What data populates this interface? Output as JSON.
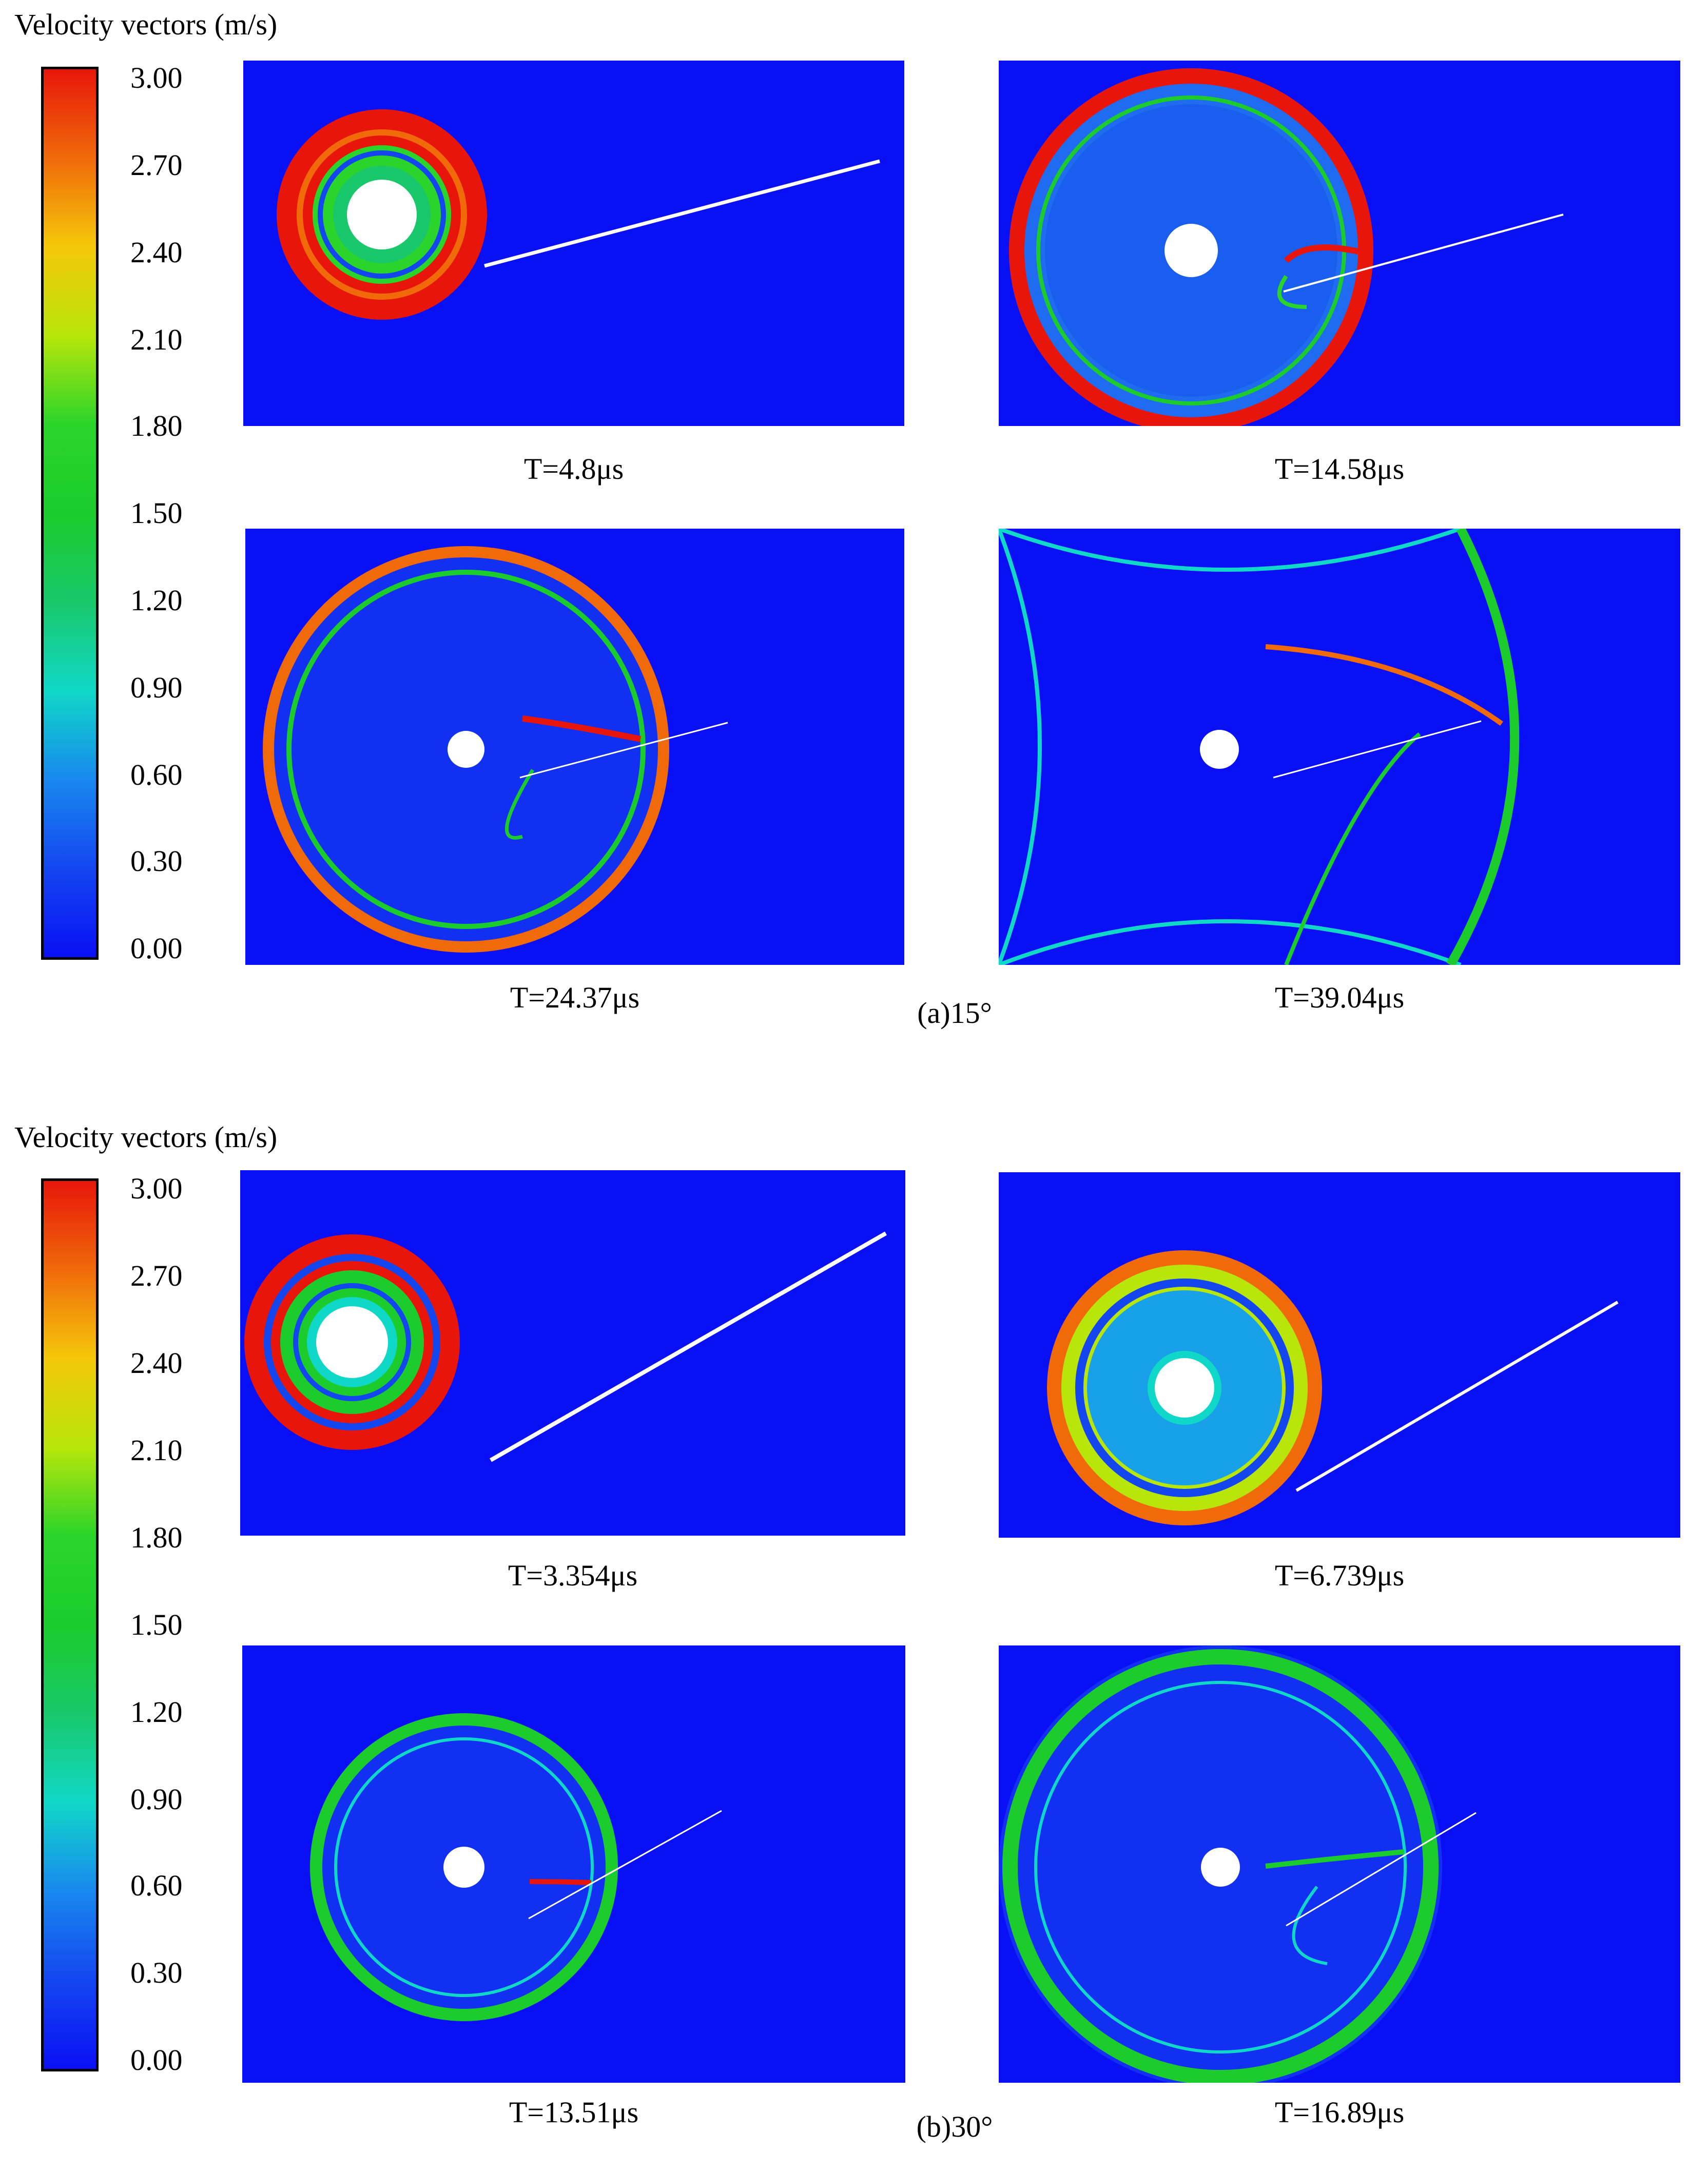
{
  "figures": [
    {
      "legend_title": "Velocity vectors (m/s)",
      "ticks": [
        "3.00",
        "2.70",
        "2.40",
        "2.10",
        "1.80",
        "1.50",
        "1.20",
        "0.90",
        "0.60",
        "0.30",
        "0.00"
      ],
      "panel_labels": [
        "T=4.8μs",
        "T=14.58μs",
        "T=24.37μs",
        "T=39.04μs"
      ],
      "caption": "(a)15°"
    },
    {
      "legend_title": "Velocity vectors (m/s)",
      "ticks": [
        "3.00",
        "2.70",
        "2.40",
        "2.10",
        "1.80",
        "1.50",
        "1.20",
        "0.90",
        "0.60",
        "0.30",
        "0.00"
      ],
      "panel_labels": [
        "T=3.354μs",
        "T=6.739μs",
        "T=13.51μs",
        "T=16.89μs"
      ],
      "caption": "(b)30°"
    }
  ],
  "colors": {
    "background_field": "#0a10f5",
    "colormap": [
      "#e8160a",
      "#f06a0a",
      "#f5c80a",
      "#b8e60a",
      "#2ad42a",
      "#1ccc2c",
      "#18c86a",
      "#10d8c8",
      "#1888ee",
      "#1446f0",
      "#0a10f5"
    ]
  }
}
